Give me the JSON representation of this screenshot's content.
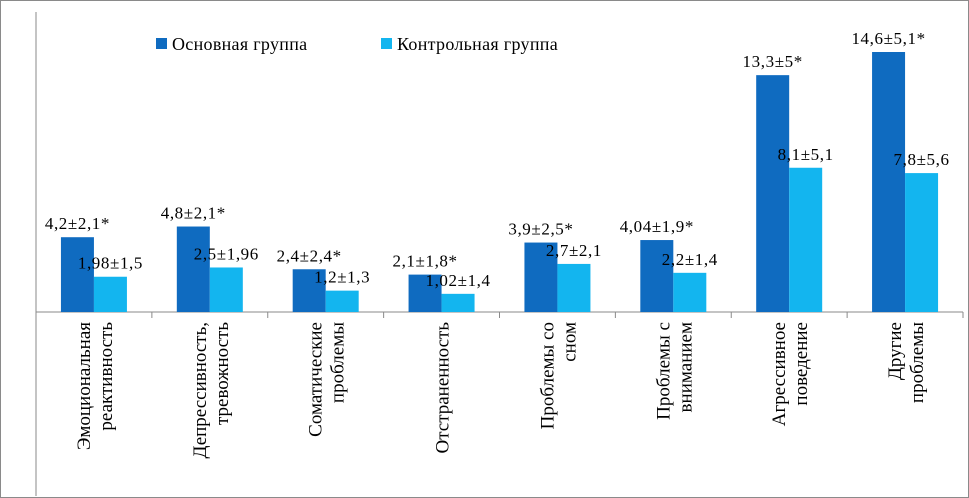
{
  "chart_data": {
    "type": "bar",
    "title": "",
    "xlabel": "",
    "ylabel": "",
    "ylim": [
      0,
      16
    ],
    "grid": false,
    "legend_position": "top-left",
    "categories": [
      [
        "Эмоциональная",
        "реактивность"
      ],
      [
        "Депрессивность,",
        "тревожность"
      ],
      [
        "Соматические",
        "проблемы"
      ],
      [
        "Отстраненность"
      ],
      [
        "Проблемы со",
        "сном"
      ],
      [
        "Проблемы с",
        "вниманием"
      ],
      [
        "Агрессивное",
        "поведение"
      ],
      [
        "Другие",
        "проблемы"
      ]
    ],
    "series": [
      {
        "name": "Основная группа",
        "color": "#0f6bc0",
        "values": [
          4.2,
          4.8,
          2.4,
          2.1,
          3.9,
          4.04,
          13.3,
          14.6
        ],
        "labels": [
          "4,2±2,1*",
          "4,8±2,1*",
          "2,4±2,4*",
          "2,1±1,8*",
          "3,9±2,5*",
          "4,04±1,9*",
          "13,3±5*",
          "14,6±5,1*"
        ]
      },
      {
        "name": "Контрольная группа",
        "color": "#13b5ef",
        "values": [
          1.98,
          2.5,
          1.2,
          1.02,
          2.7,
          2.2,
          8.1,
          7.8
        ],
        "labels": [
          "1,98±1,5",
          "2,5±1,96",
          "1,2±1,3",
          "1,02±1,4",
          "2,7±2,1",
          "2,2±1,4",
          "8,1±5,1",
          "7,8±5,6"
        ]
      }
    ]
  }
}
